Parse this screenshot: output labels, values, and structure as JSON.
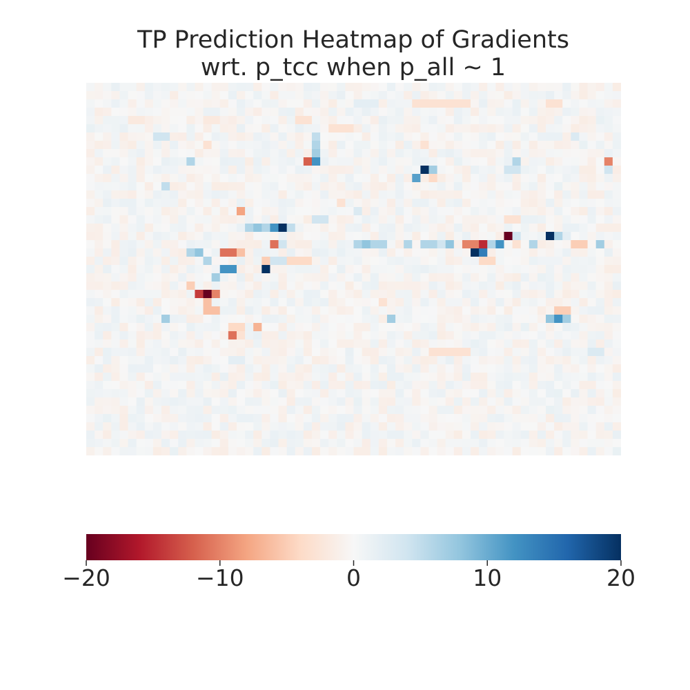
{
  "chart_data": {
    "type": "heatmap",
    "title_lines": [
      "TP Prediction Heatmap of Gradients",
      "wrt. p_tcc when p_all ~ 1"
    ],
    "xlabel": "",
    "ylabel": "",
    "grid_rows": 45,
    "grid_cols": 64,
    "colormap": "RdBu",
    "vmin": -20,
    "vmax": 20,
    "colorbar": {
      "orientation": "horizontal",
      "ticks": [
        -20,
        -10,
        0,
        10,
        20
      ],
      "tick_labels": [
        "−20",
        "−10",
        "0",
        "10",
        "20"
      ]
    },
    "background_value": 0,
    "cells": [
      {
        "r": 2,
        "c": 39,
        "v": -3
      },
      {
        "r": 2,
        "c": 40,
        "v": -3
      },
      {
        "r": 2,
        "c": 41,
        "v": -3
      },
      {
        "r": 2,
        "c": 42,
        "v": -3
      },
      {
        "r": 2,
        "c": 43,
        "v": -3
      },
      {
        "r": 2,
        "c": 44,
        "v": -3
      },
      {
        "r": 2,
        "c": 45,
        "v": -3
      },
      {
        "r": 2,
        "c": 32,
        "v": 2
      },
      {
        "r": 2,
        "c": 33,
        "v": 2
      },
      {
        "r": 2,
        "c": 34,
        "v": 2
      },
      {
        "r": 2,
        "c": 55,
        "v": -3
      },
      {
        "r": 2,
        "c": 56,
        "v": -3
      },
      {
        "r": 4,
        "c": 5,
        "v": -2
      },
      {
        "r": 4,
        "c": 6,
        "v": -2
      },
      {
        "r": 4,
        "c": 14,
        "v": -2
      },
      {
        "r": 4,
        "c": 15,
        "v": -2
      },
      {
        "r": 4,
        "c": 25,
        "v": -3
      },
      {
        "r": 4,
        "c": 26,
        "v": -3
      },
      {
        "r": 5,
        "c": 29,
        "v": -3
      },
      {
        "r": 5,
        "c": 30,
        "v": -3
      },
      {
        "r": 5,
        "c": 31,
        "v": -3
      },
      {
        "r": 6,
        "c": 8,
        "v": 4
      },
      {
        "r": 6,
        "c": 9,
        "v": 4
      },
      {
        "r": 6,
        "c": 27,
        "v": 5
      },
      {
        "r": 6,
        "c": 58,
        "v": 3
      },
      {
        "r": 7,
        "c": 27,
        "v": 6
      },
      {
        "r": 7,
        "c": 14,
        "v": -3
      },
      {
        "r": 7,
        "c": 40,
        "v": -3
      },
      {
        "r": 8,
        "c": 27,
        "v": 7
      },
      {
        "r": 9,
        "c": 12,
        "v": 6
      },
      {
        "r": 9,
        "c": 26,
        "v": -12
      },
      {
        "r": 9,
        "c": 27,
        "v": 12
      },
      {
        "r": 9,
        "c": 51,
        "v": 6
      },
      {
        "r": 9,
        "c": 62,
        "v": -10
      },
      {
        "r": 10,
        "c": 40,
        "v": 20
      },
      {
        "r": 10,
        "c": 41,
        "v": 7
      },
      {
        "r": 10,
        "c": 50,
        "v": 4
      },
      {
        "r": 10,
        "c": 51,
        "v": 4
      },
      {
        "r": 10,
        "c": 62,
        "v": 4
      },
      {
        "r": 11,
        "c": 39,
        "v": 11
      },
      {
        "r": 11,
        "c": 41,
        "v": -4
      },
      {
        "r": 12,
        "c": 9,
        "v": 5
      },
      {
        "r": 14,
        "c": 30,
        "v": -3
      },
      {
        "r": 15,
        "c": 18,
        "v": -8
      },
      {
        "r": 15,
        "c": 32,
        "v": 3
      },
      {
        "r": 16,
        "c": 27,
        "v": 4
      },
      {
        "r": 16,
        "c": 28,
        "v": 4
      },
      {
        "r": 16,
        "c": 50,
        "v": -3
      },
      {
        "r": 16,
        "c": 51,
        "v": -3
      },
      {
        "r": 17,
        "c": 19,
        "v": 6
      },
      {
        "r": 17,
        "c": 20,
        "v": 8
      },
      {
        "r": 17,
        "c": 21,
        "v": 6
      },
      {
        "r": 17,
        "c": 22,
        "v": 12
      },
      {
        "r": 17,
        "c": 23,
        "v": 20
      },
      {
        "r": 17,
        "c": 24,
        "v": 5
      },
      {
        "r": 18,
        "c": 50,
        "v": -20
      },
      {
        "r": 18,
        "c": 51,
        "v": 4
      },
      {
        "r": 18,
        "c": 55,
        "v": 20
      },
      {
        "r": 18,
        "c": 56,
        "v": 6
      },
      {
        "r": 18,
        "c": 57,
        "v": 2
      },
      {
        "r": 19,
        "c": 22,
        "v": -11
      },
      {
        "r": 19,
        "c": 23,
        "v": 4
      },
      {
        "r": 19,
        "c": 32,
        "v": 6
      },
      {
        "r": 19,
        "c": 33,
        "v": 8
      },
      {
        "r": 19,
        "c": 34,
        "v": 6
      },
      {
        "r": 19,
        "c": 35,
        "v": 6
      },
      {
        "r": 19,
        "c": 38,
        "v": 6
      },
      {
        "r": 19,
        "c": 40,
        "v": 6
      },
      {
        "r": 19,
        "c": 41,
        "v": 6
      },
      {
        "r": 19,
        "c": 42,
        "v": 4
      },
      {
        "r": 19,
        "c": 43,
        "v": 8
      },
      {
        "r": 19,
        "c": 45,
        "v": -10
      },
      {
        "r": 19,
        "c": 46,
        "v": -10
      },
      {
        "r": 19,
        "c": 47,
        "v": -15
      },
      {
        "r": 19,
        "c": 48,
        "v": 6
      },
      {
        "r": 19,
        "c": 49,
        "v": 12
      },
      {
        "r": 19,
        "c": 51,
        "v": -3
      },
      {
        "r": 19,
        "c": 53,
        "v": 6
      },
      {
        "r": 19,
        "c": 58,
        "v": -5
      },
      {
        "r": 19,
        "c": 59,
        "v": -5
      },
      {
        "r": 19,
        "c": 61,
        "v": 7
      },
      {
        "r": 20,
        "c": 12,
        "v": 6
      },
      {
        "r": 20,
        "c": 13,
        "v": 8
      },
      {
        "r": 20,
        "c": 16,
        "v": -11
      },
      {
        "r": 20,
        "c": 17,
        "v": -11
      },
      {
        "r": 20,
        "c": 18,
        "v": -6
      },
      {
        "r": 20,
        "c": 46,
        "v": 20
      },
      {
        "r": 20,
        "c": 47,
        "v": 14
      },
      {
        "r": 21,
        "c": 14,
        "v": 6
      },
      {
        "r": 21,
        "c": 21,
        "v": -5
      },
      {
        "r": 21,
        "c": 22,
        "v": 4
      },
      {
        "r": 21,
        "c": 23,
        "v": 4
      },
      {
        "r": 21,
        "c": 24,
        "v": -4
      },
      {
        "r": 21,
        "c": 25,
        "v": -4
      },
      {
        "r": 21,
        "c": 26,
        "v": -4
      },
      {
        "r": 21,
        "c": 47,
        "v": -4
      },
      {
        "r": 21,
        "c": 48,
        "v": -4
      },
      {
        "r": 22,
        "c": 16,
        "v": 12
      },
      {
        "r": 22,
        "c": 17,
        "v": 12
      },
      {
        "r": 22,
        "c": 21,
        "v": 20
      },
      {
        "r": 23,
        "c": 15,
        "v": 7
      },
      {
        "r": 24,
        "c": 12,
        "v": -5
      },
      {
        "r": 25,
        "c": 13,
        "v": -14
      },
      {
        "r": 25,
        "c": 14,
        "v": -20
      },
      {
        "r": 25,
        "c": 15,
        "v": -10
      },
      {
        "r": 26,
        "c": 14,
        "v": -6
      },
      {
        "r": 26,
        "c": 35,
        "v": -3
      },
      {
        "r": 27,
        "c": 14,
        "v": -6
      },
      {
        "r": 27,
        "c": 15,
        "v": -6
      },
      {
        "r": 27,
        "c": 56,
        "v": -5
      },
      {
        "r": 27,
        "c": 57,
        "v": -5
      },
      {
        "r": 28,
        "c": 9,
        "v": 7
      },
      {
        "r": 28,
        "c": 36,
        "v": 7
      },
      {
        "r": 28,
        "c": 55,
        "v": 8
      },
      {
        "r": 28,
        "c": 56,
        "v": 12
      },
      {
        "r": 28,
        "c": 57,
        "v": 7
      },
      {
        "r": 29,
        "c": 17,
        "v": -4
      },
      {
        "r": 29,
        "c": 18,
        "v": -4
      },
      {
        "r": 29,
        "c": 20,
        "v": -7
      },
      {
        "r": 30,
        "c": 17,
        "v": -11
      },
      {
        "r": 30,
        "c": 18,
        "v": -3
      },
      {
        "r": 32,
        "c": 41,
        "v": -3
      },
      {
        "r": 32,
        "c": 42,
        "v": -3
      },
      {
        "r": 32,
        "c": 43,
        "v": -3
      },
      {
        "r": 32,
        "c": 44,
        "v": -3
      },
      {
        "r": 32,
        "c": 45,
        "v": -3
      },
      {
        "r": 32,
        "c": 60,
        "v": 3
      },
      {
        "r": 32,
        "c": 61,
        "v": 3
      },
      {
        "r": 33,
        "c": 17,
        "v": 2
      },
      {
        "r": 33,
        "c": 18,
        "v": 2
      }
    ]
  }
}
